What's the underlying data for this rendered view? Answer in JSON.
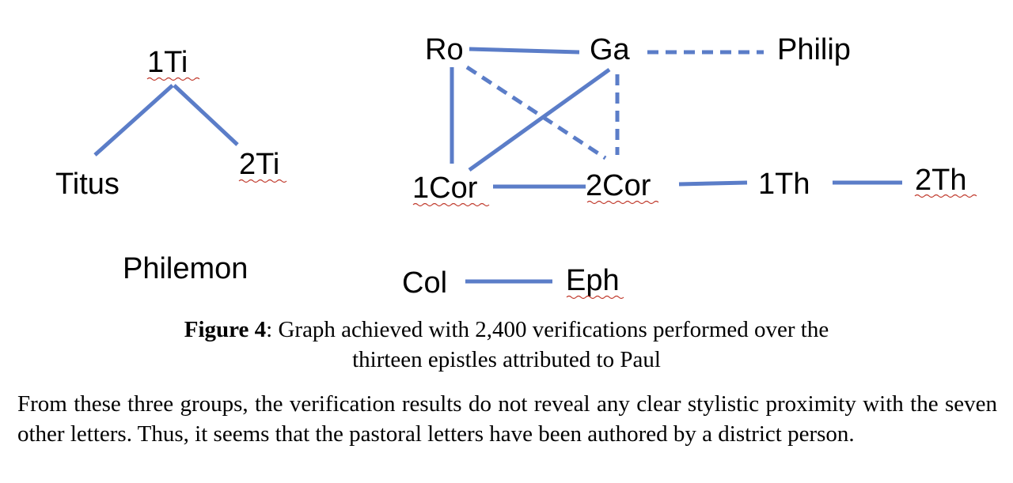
{
  "graph": {
    "nodes": {
      "n1ti": "1Ti",
      "titus": "Titus",
      "n2ti": "2Ti",
      "philemon": "Philemon",
      "ro": "Ro",
      "ga": "Ga",
      "philip": "Philip",
      "n1cor": "1Cor",
      "n2cor": "2Cor",
      "n1th": "1Th",
      "n2th": "2Th",
      "col": "Col",
      "eph": "Eph"
    },
    "edges": [
      {
        "from": "1Ti",
        "to": "Titus",
        "style": "solid"
      },
      {
        "from": "1Ti",
        "to": "2Ti",
        "style": "solid"
      },
      {
        "from": "Ro",
        "to": "Ga",
        "style": "solid"
      },
      {
        "from": "Ga",
        "to": "Philip",
        "style": "dashed"
      },
      {
        "from": "Ro",
        "to": "1Cor",
        "style": "solid"
      },
      {
        "from": "Ro",
        "to": "2Cor",
        "style": "dashed"
      },
      {
        "from": "Ga",
        "to": "1Cor",
        "style": "solid"
      },
      {
        "from": "Ga",
        "to": "2Cor",
        "style": "dashed"
      },
      {
        "from": "1Cor",
        "to": "2Cor",
        "style": "solid"
      },
      {
        "from": "2Cor",
        "to": "1Th",
        "style": "solid"
      },
      {
        "from": "1Th",
        "to": "2Th",
        "style": "solid"
      },
      {
        "from": "Col",
        "to": "Eph",
        "style": "solid"
      }
    ],
    "edge_color": "#5b7dc8"
  },
  "caption": {
    "label": "Figure 4",
    "line1": ":  Graph achieved with 2,400 verifications performed over the",
    "line2": "thirteen epistles attributed to Paul"
  },
  "paragraph": "From these three groups, the verification results do not reveal any clear stylistic proximity with the seven other letters.  Thus, it seems that the pastoral letters have been authored by a district person."
}
